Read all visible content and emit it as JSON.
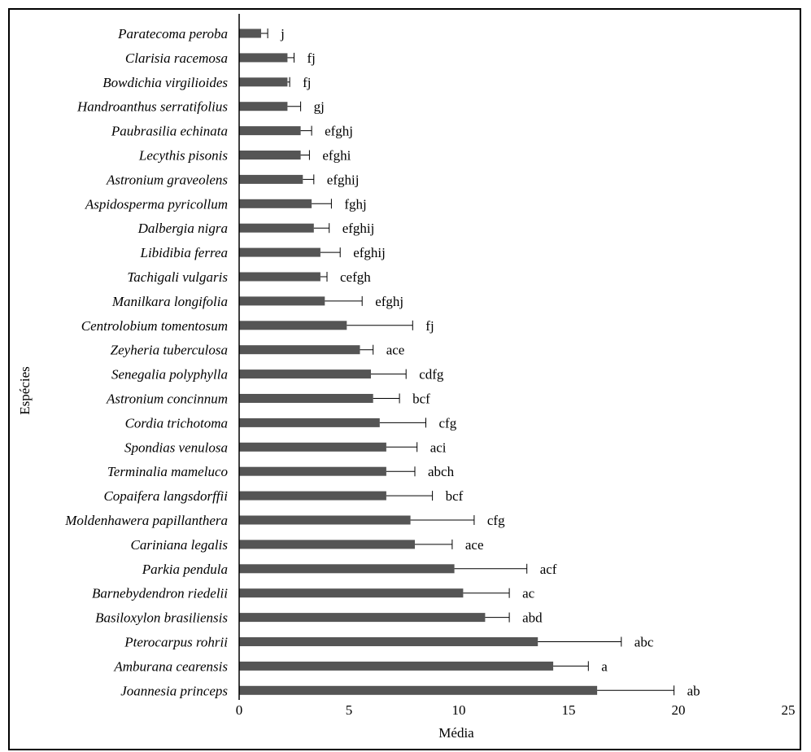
{
  "chart_data": {
    "type": "bar",
    "orientation": "horizontal",
    "xlabel": "Média",
    "ylabel": "Espécies",
    "xlim": [
      0,
      25
    ],
    "xticks": [
      0,
      5,
      10,
      15,
      20,
      25
    ],
    "grid": false,
    "bar_color": "#555555",
    "categories": [
      "Paratecoma peroba",
      "Clarisia racemosa",
      "Bowdichia virgilioides",
      "Handroanthus serratifolius",
      "Paubrasilia echinata",
      "Lecythis pisonis",
      "Astronium graveolens",
      "Aspidosperma pyricollum",
      "Dalbergia nigra",
      "Libidibia ferrea",
      "Tachigali vulgaris",
      "Manilkara longifolia",
      "Centrolobium tomentosum",
      "Zeyheria tuberculosa",
      "Senegalia polyphylla",
      "Astronium concinnum",
      "Cordia trichotoma",
      "Spondias venulosa",
      "Terminalia mameluco",
      "Copaifera langsdorffii",
      "Moldenhawera papillanthera",
      "Cariniana legalis",
      "Parkia pendula",
      "Barnebydendron riedelii",
      "Basiloxylon brasiliensis",
      "Pterocarpus rohrii",
      "Amburana cearensis",
      "Joannesia princeps"
    ],
    "values": [
      1.0,
      2.2,
      2.2,
      2.2,
      2.8,
      2.8,
      2.9,
      3.3,
      3.4,
      3.7,
      3.7,
      3.9,
      4.9,
      5.5,
      6.0,
      6.1,
      6.4,
      6.7,
      6.7,
      6.7,
      7.8,
      8.0,
      9.8,
      10.2,
      11.2,
      13.6,
      14.3,
      16.3
    ],
    "errors": [
      0.3,
      0.3,
      0.1,
      0.6,
      0.5,
      0.4,
      0.5,
      0.9,
      0.7,
      0.9,
      0.3,
      1.7,
      3.0,
      0.6,
      1.6,
      1.2,
      2.1,
      1.4,
      1.3,
      2.1,
      2.9,
      1.7,
      3.3,
      2.1,
      1.1,
      3.8,
      1.6,
      3.5
    ],
    "annotations": [
      "j",
      "fj",
      "fj",
      "gj",
      "efghj",
      "efghi",
      "efghij",
      "fghj",
      "efghij",
      "efghij",
      "cefgh",
      "efghj",
      "fj",
      "ace",
      "cdfg",
      "bcf",
      "cfg",
      "aci",
      "abch",
      "bcf",
      "cfg",
      "ace",
      "acf",
      "ac",
      "abd",
      "abc",
      "a",
      "ab"
    ]
  }
}
